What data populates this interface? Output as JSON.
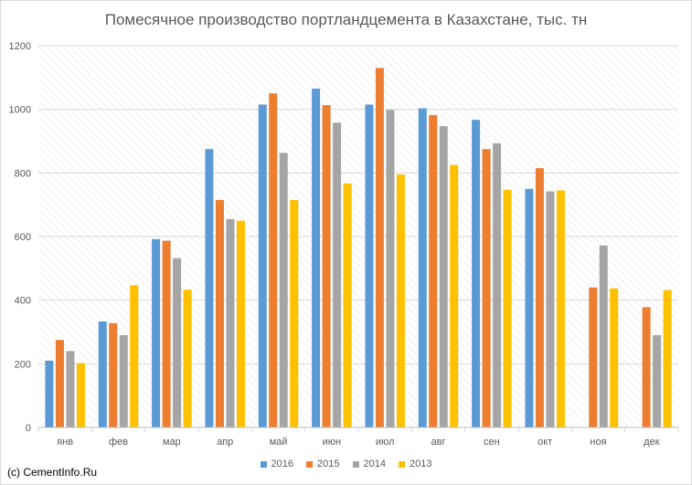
{
  "chart_data": {
    "type": "bar",
    "title": "Помесячное производство портландцемента в Казахстане, тыс. тн",
    "xlabel": "",
    "ylabel": "",
    "categories": [
      "янв",
      "фев",
      "мар",
      "апр",
      "май",
      "июн",
      "июл",
      "авг",
      "сен",
      "окт",
      "ноя",
      "дек"
    ],
    "ylim": [
      0,
      1200
    ],
    "yticks": [
      0,
      200,
      400,
      600,
      800,
      1000,
      1200
    ],
    "grid": true,
    "legend_position": "bottom",
    "series": [
      {
        "name": "2016",
        "color": "#5B9BD5",
        "values": [
          210,
          333,
          592,
          875,
          1015,
          1065,
          1015,
          1003,
          967,
          750,
          null,
          null
        ]
      },
      {
        "name": "2015",
        "color": "#ED7D31",
        "values": [
          275,
          328,
          587,
          715,
          1050,
          1013,
          1130,
          982,
          875,
          815,
          440,
          378
        ]
      },
      {
        "name": "2014",
        "color": "#A5A5A5",
        "values": [
          240,
          290,
          532,
          655,
          863,
          958,
          998,
          947,
          893,
          742,
          572,
          290
        ]
      },
      {
        "name": "2013",
        "color": "#FFC000",
        "values": [
          202,
          447,
          433,
          650,
          715,
          767,
          795,
          825,
          747,
          745,
          437,
          432
        ]
      }
    ]
  },
  "credit": "(c) CementInfo.Ru"
}
